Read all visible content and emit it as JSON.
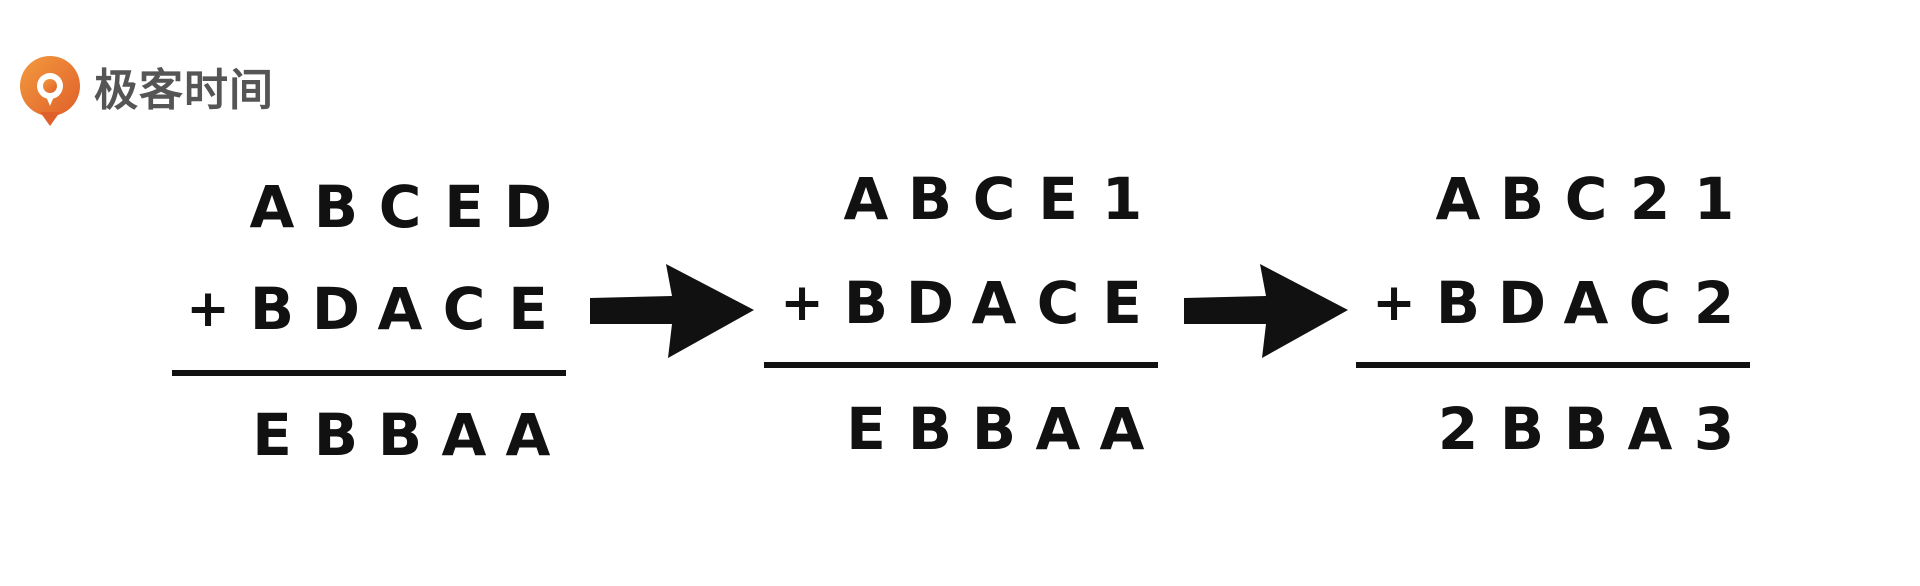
{
  "logo": {
    "text": "极客时间",
    "icon": "geektime-logo-icon",
    "brand_color": "#E8742C"
  },
  "problems": [
    {
      "addend1": [
        "A",
        "B",
        "C",
        "E",
        "D"
      ],
      "operator": "+",
      "addend2": [
        "B",
        "D",
        "A",
        "C",
        "E"
      ],
      "sum": [
        "E",
        "B",
        "B",
        "A",
        "A"
      ]
    },
    {
      "addend1": [
        "A",
        "B",
        "C",
        "E",
        "1"
      ],
      "operator": "+",
      "addend2": [
        "B",
        "D",
        "A",
        "C",
        "E"
      ],
      "sum": [
        "E",
        "B",
        "B",
        "A",
        "A"
      ]
    },
    {
      "addend1": [
        "A",
        "B",
        "C",
        "2",
        "1"
      ],
      "operator": "+",
      "addend2": [
        "B",
        "D",
        "A",
        "C",
        "2"
      ],
      "sum": [
        "2",
        "B",
        "B",
        "A",
        "3"
      ]
    }
  ],
  "arrows": [
    "right-arrow-icon",
    "right-arrow-icon"
  ]
}
